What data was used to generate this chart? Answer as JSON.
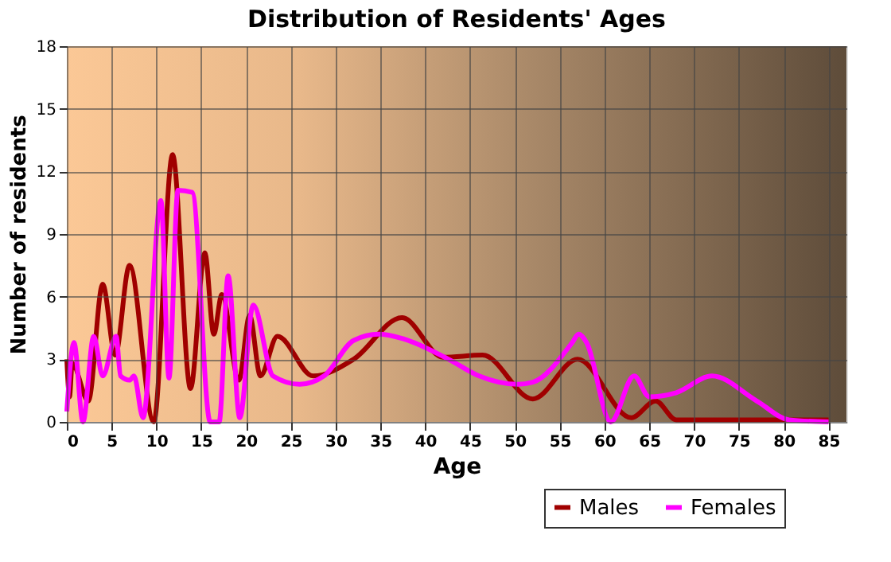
{
  "chart_data": {
    "type": "line",
    "title": "Distribution of Residents' Ages",
    "xlabel": "Age",
    "ylabel": "Number of residents",
    "xlim": [
      0,
      87
    ],
    "xticks": [
      0,
      5,
      10,
      15,
      20,
      25,
      30,
      35,
      40,
      45,
      50,
      55,
      60,
      65,
      70,
      75,
      80,
      85
    ],
    "ylim": [
      0,
      18
    ],
    "yticks": [
      0,
      3,
      6,
      9,
      12,
      15,
      18
    ],
    "grid": true,
    "legend": "bottom right",
    "series": [
      {
        "name": "Males",
        "color": "#a00000",
        "x": [
          0,
          0.3,
          0.6,
          2.4,
          4,
          5.4,
          7,
          9.7,
          11.8,
          13.8,
          15.4,
          16.4,
          17.3,
          19.2,
          20.4,
          21.6,
          23.5,
          27.5,
          32,
          37.4,
          42,
          46.4,
          52,
          57,
          63,
          65.7,
          68,
          75,
          85
        ],
        "values": [
          3,
          1.2,
          2.8,
          1,
          6.6,
          3.2,
          7.5,
          0,
          12.8,
          1.6,
          8.1,
          4.2,
          6.1,
          2,
          5.1,
          2.2,
          4.1,
          2.2,
          3,
          5,
          3.1,
          3.2,
          1.1,
          3,
          0.2,
          1,
          0.1,
          0.1,
          0.1
        ]
      },
      {
        "name": "Females",
        "color": "#ff00ff",
        "x": [
          0,
          0.8,
          1.8,
          3,
          4,
          5.5,
          6,
          7,
          7.5,
          8.5,
          10.5,
          11.4,
          12.4,
          14,
          16,
          17,
          18,
          19.3,
          20.8,
          23,
          26,
          28.7,
          32,
          34.8,
          37.4,
          42.6,
          46,
          50.3,
          52,
          56.4,
          57.1,
          58,
          60.7,
          63.3,
          65,
          68,
          72,
          77,
          80.6,
          85
        ],
        "values": [
          0.5,
          3.8,
          0,
          4.1,
          2.2,
          4.1,
          2.2,
          2,
          2.2,
          0.2,
          10.6,
          2.1,
          11.1,
          11,
          0,
          0,
          7,
          0.2,
          5.6,
          2.2,
          1.8,
          2.2,
          3.9,
          4.2,
          4,
          3,
          2.2,
          1.8,
          1.9,
          3.8,
          4.2,
          3.8,
          0,
          2.2,
          1.2,
          1.4,
          2.2,
          1,
          0.1,
          0
        ]
      }
    ]
  }
}
